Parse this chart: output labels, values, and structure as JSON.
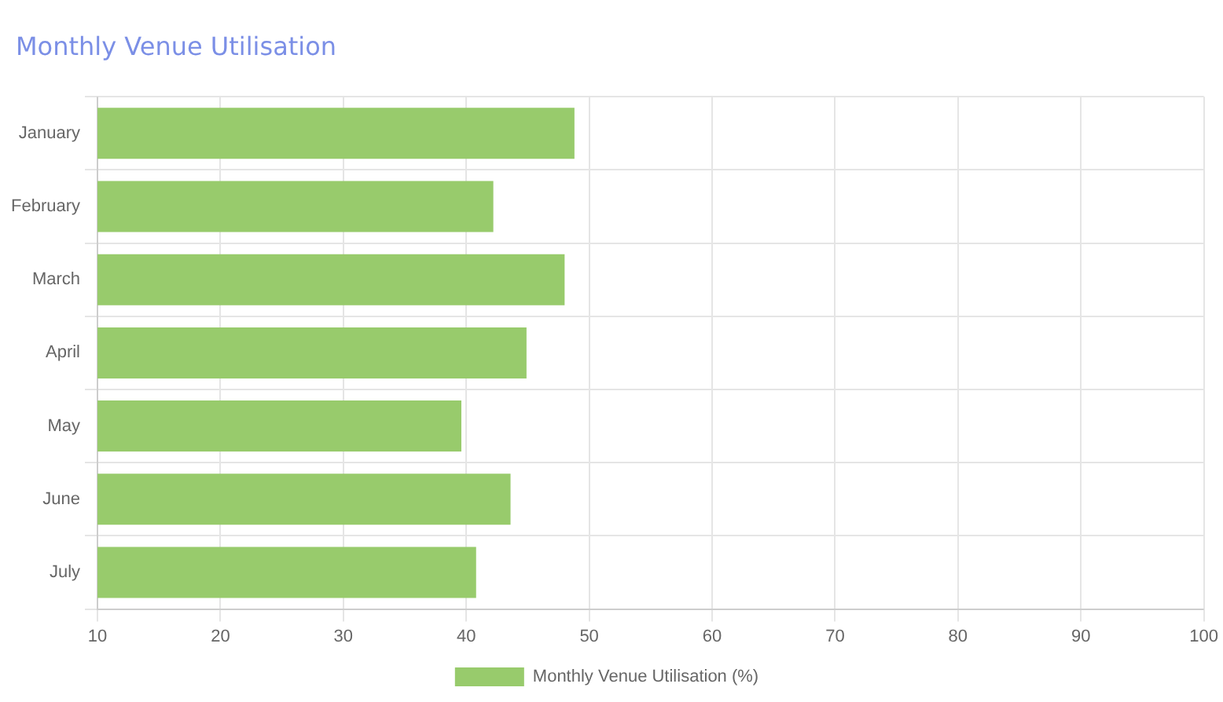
{
  "chart_data": {
    "type": "bar",
    "orientation": "horizontal",
    "title": "Monthly Venue Utilisation",
    "categories": [
      "January",
      "February",
      "March",
      "April",
      "May",
      "June",
      "July"
    ],
    "series": [
      {
        "name": "Monthly Venue Utilisation (%)",
        "color": "#98cb6c",
        "values": [
          48.8,
          42.2,
          48.0,
          44.9,
          39.6,
          43.6,
          40.8
        ]
      }
    ],
    "xlim": [
      10,
      100
    ],
    "xticks": [
      10,
      20,
      30,
      40,
      50,
      60,
      70,
      80,
      90,
      100
    ],
    "grid": true,
    "legend": "bottom"
  }
}
